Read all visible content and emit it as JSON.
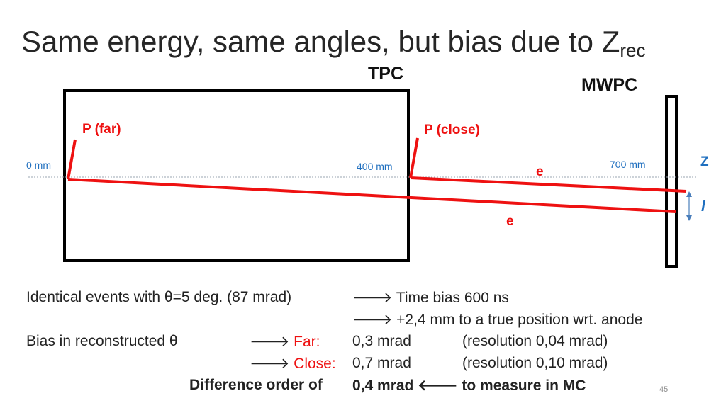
{
  "title": {
    "main": "Same energy, same angles, but bias due to Z",
    "sub": "rec"
  },
  "labels": {
    "tpc": "TPC",
    "mwpc": "MWPC",
    "p_far": "P (far)",
    "p_close": "P (close)",
    "e_upper": "e",
    "e_lower": "e",
    "mm0": "0 mm",
    "mm400": "400 mm",
    "mm700": "700 mm",
    "z_axis": "Z",
    "l_arrow": "l"
  },
  "text": {
    "line1_left": "Identical events with θ=5 deg. (87 mrad)",
    "line1_right": "Time bias 600 ns",
    "line2_right": "+2,4 mm to a true position wrt. anode",
    "line3_left": "Bias in reconstructed θ",
    "far_label": "Far:",
    "far_value": "0,3 mrad",
    "far_res": "(resolution 0,04 mrad)",
    "close_label": "Close:",
    "close_value": "0,7 mrad",
    "close_res": "(resolution 0,10 mrad)",
    "diff_label": "Difference order of",
    "diff_value": "0,4 mrad",
    "diff_tail": "to measure in MC"
  },
  "slide_number": "45",
  "colors": {
    "accent_red": "#ee1111",
    "accent_blue": "#1f6fbf",
    "text": "#222222"
  }
}
